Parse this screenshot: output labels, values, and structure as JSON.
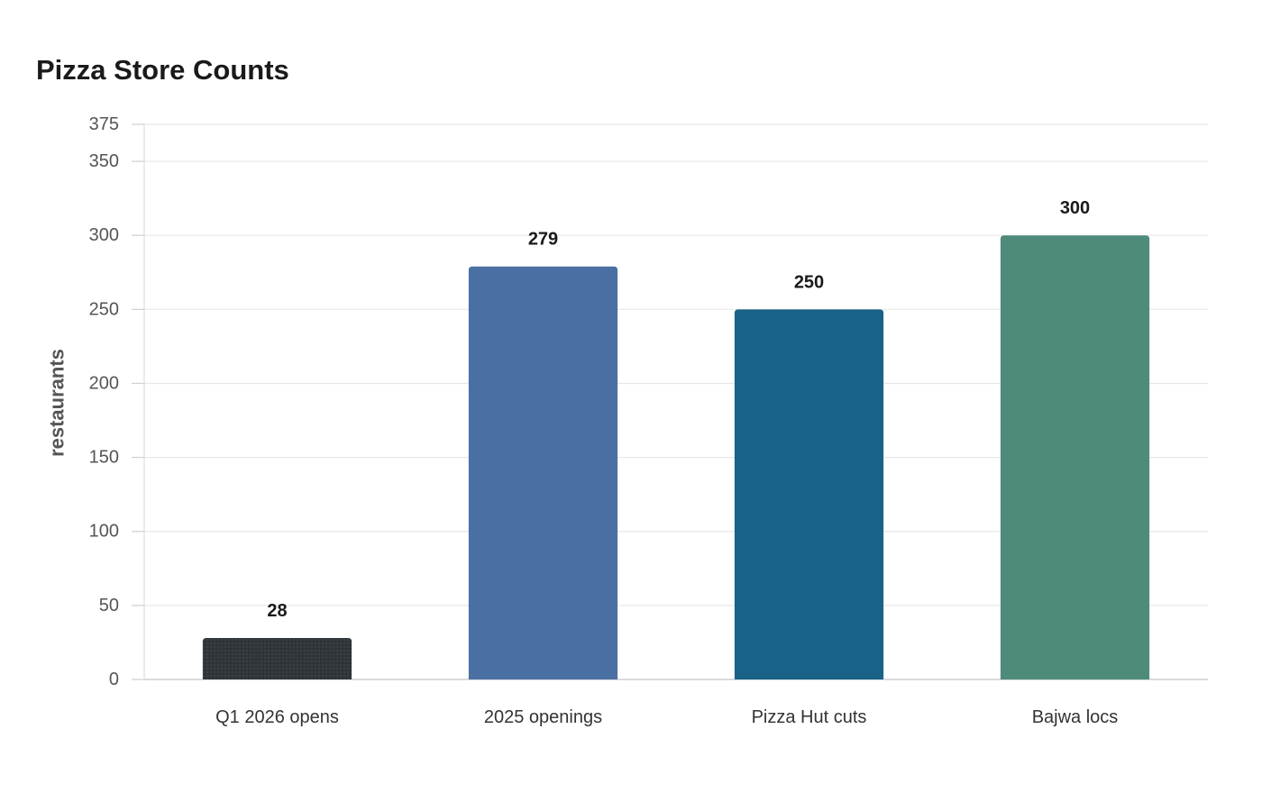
{
  "chart_data": {
    "type": "bar",
    "title": "Pizza Store Counts",
    "xlabel": "",
    "ylabel": "restaurants",
    "categories": [
      "Q1 2026 opens",
      "2025 openings",
      "Pizza Hut cuts",
      "Bajwa locs"
    ],
    "values": [
      28,
      279,
      250,
      300
    ],
    "colors": [
      "#2e3437",
      "#4a6fa3",
      "#186287",
      "#4f8b7a"
    ],
    "ylim": [
      0,
      375
    ],
    "yticks": [
      0,
      50,
      100,
      150,
      200,
      250,
      300,
      350,
      375
    ],
    "grid": true,
    "legend": "none",
    "data_labels": true
  }
}
